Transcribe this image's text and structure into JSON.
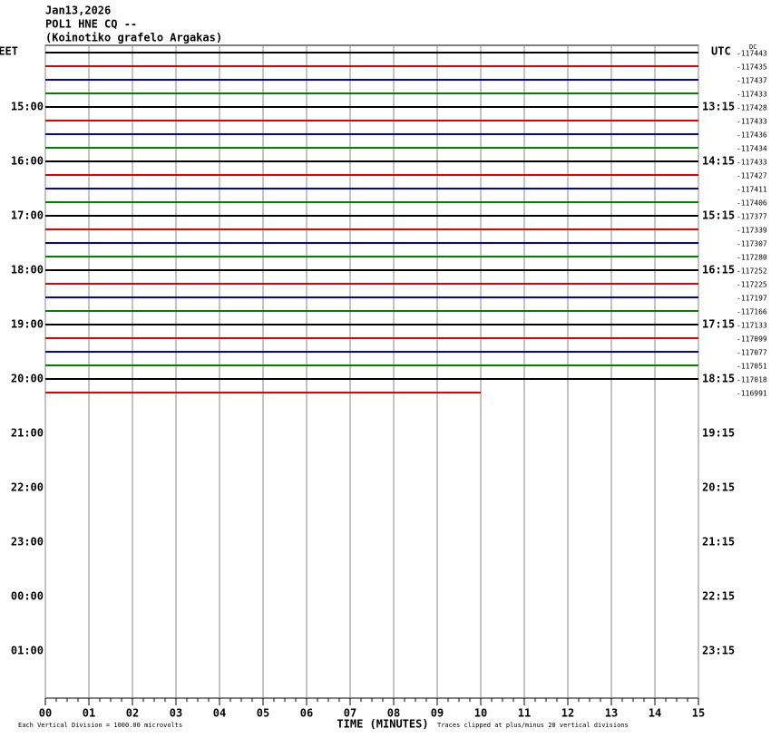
{
  "chart_data": {
    "type": "helicorder",
    "title": "Jan13,2026",
    "subtitle": "POL1 HNE CQ --",
    "station": "(Koinotiko grafelo Argakas)",
    "left_zone": "EET",
    "right_zone": "UTC",
    "dc_label": "DC",
    "left_hours": [
      "15:00",
      "16:00",
      "17:00",
      "18:00",
      "19:00",
      "20:00",
      "21:00",
      "22:00",
      "23:00",
      "00:00",
      "01:00"
    ],
    "right_hours": [
      "13:15",
      "14:15",
      "15:15",
      "16:15",
      "17:15",
      "18:15",
      "19:15",
      "20:15",
      "21:15",
      "22:15",
      "23:15"
    ],
    "xlabel": "TIME (MINUTES)",
    "scale_note": "Each Vertical Division = 1000.00 microvolts",
    "clip_note": "Traces clipped at plus/minus 20 vertical divisions",
    "xlim": [
      0,
      15
    ],
    "xticks": [
      {
        "value": 0,
        "label": "00"
      },
      {
        "value": 1,
        "label": "01"
      },
      {
        "value": 2,
        "label": "02"
      },
      {
        "value": 3,
        "label": "03"
      },
      {
        "value": 4,
        "label": "04"
      },
      {
        "value": 5,
        "label": "05"
      },
      {
        "value": 6,
        "label": "06"
      },
      {
        "value": 7,
        "label": "07"
      },
      {
        "value": 8,
        "label": "08"
      },
      {
        "value": 9,
        "label": "09"
      },
      {
        "value": 10,
        "label": "10"
      },
      {
        "value": 11,
        "label": "11"
      },
      {
        "value": 12,
        "label": "12"
      },
      {
        "value": 13,
        "label": "13"
      },
      {
        "value": 14,
        "label": "14"
      },
      {
        "value": 15,
        "label": "15"
      }
    ],
    "grid": true,
    "colors": [
      "#000000",
      "#e00000",
      "#0000c0",
      "#008000"
    ],
    "traces": [
      -117443,
      -117435,
      -117437,
      -117433,
      -117428,
      -117433,
      -117436,
      -117434,
      -117433,
      -117427,
      -117411,
      -117406,
      -117377,
      -117339,
      -117307,
      -117280,
      -117252,
      -117225,
      -117197,
      -117166,
      -117133,
      -117099,
      -117077,
      -117051,
      -117018,
      -116991
    ],
    "last_trace_end": 10
  }
}
